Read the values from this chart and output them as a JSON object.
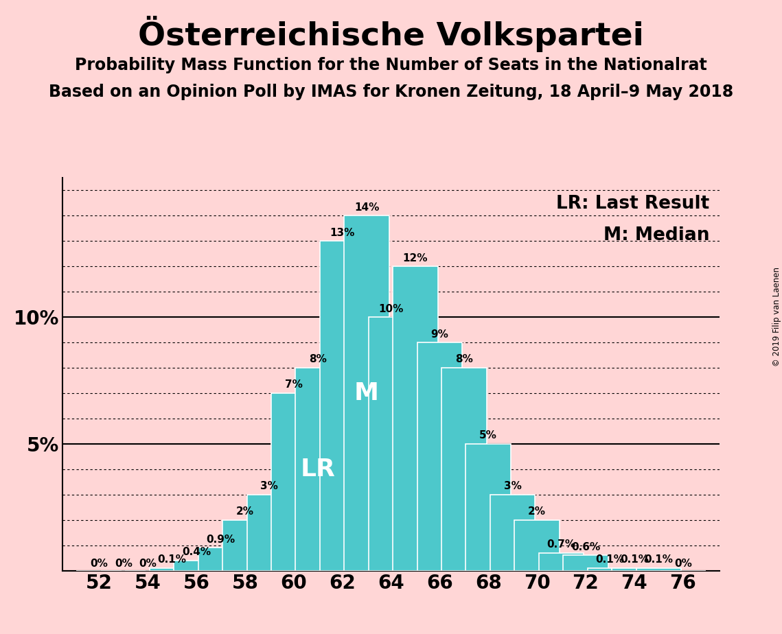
{
  "title": "Österreichische Volkspartei",
  "subtitle1": "Probability Mass Function for the Number of Seats in the Nationalrat",
  "subtitle2": "Based on an Opinion Poll by IMAS for Kronen Zeitung, 18 April–9 May 2018",
  "copyright": "© 2019 Filip van Laenen",
  "seats": [
    52,
    53,
    54,
    55,
    56,
    57,
    58,
    59,
    60,
    61,
    62,
    63,
    64,
    65,
    66,
    67,
    68,
    69,
    70,
    71,
    72,
    73,
    74,
    75,
    76
  ],
  "probabilities": [
    0.0,
    0.0,
    0.0,
    0.1,
    0.4,
    0.9,
    2.0,
    3.0,
    7.0,
    8.0,
    13.0,
    14.0,
    10.0,
    12.0,
    9.0,
    8.0,
    5.0,
    3.0,
    2.0,
    0.7,
    0.6,
    0.1,
    0.1,
    0.1,
    0.0
  ],
  "labels": [
    "0%",
    "0%",
    "0%",
    "0.1%",
    "0.4%",
    "0.9%",
    "2%",
    "3%",
    "7%",
    "8%",
    "13%",
    "14%",
    "10%",
    "12%",
    "9%",
    "8%",
    "5%",
    "3%",
    "2%",
    "0.7%",
    "0.6%",
    "0.1%",
    "0.1%",
    "0.1%",
    "0%"
  ],
  "last_result_seat": 61,
  "median_seat": 63,
  "bar_color": "#4DC8CB",
  "bar_edge_color": "#ffffff",
  "background_color": "#FFD6D6",
  "text_color": "#000000",
  "solid_line_color": "#000000",
  "dotted_line_color": "#000000",
  "ylim": [
    0,
    15.5
  ],
  "xticks": [
    52,
    54,
    56,
    58,
    60,
    62,
    64,
    66,
    68,
    70,
    72,
    74,
    76
  ],
  "title_fontsize": 34,
  "subtitle_fontsize": 17,
  "axis_fontsize": 20,
  "bar_label_fontsize": 12,
  "annotation_fontsize": 26,
  "legend_fontsize": 19
}
